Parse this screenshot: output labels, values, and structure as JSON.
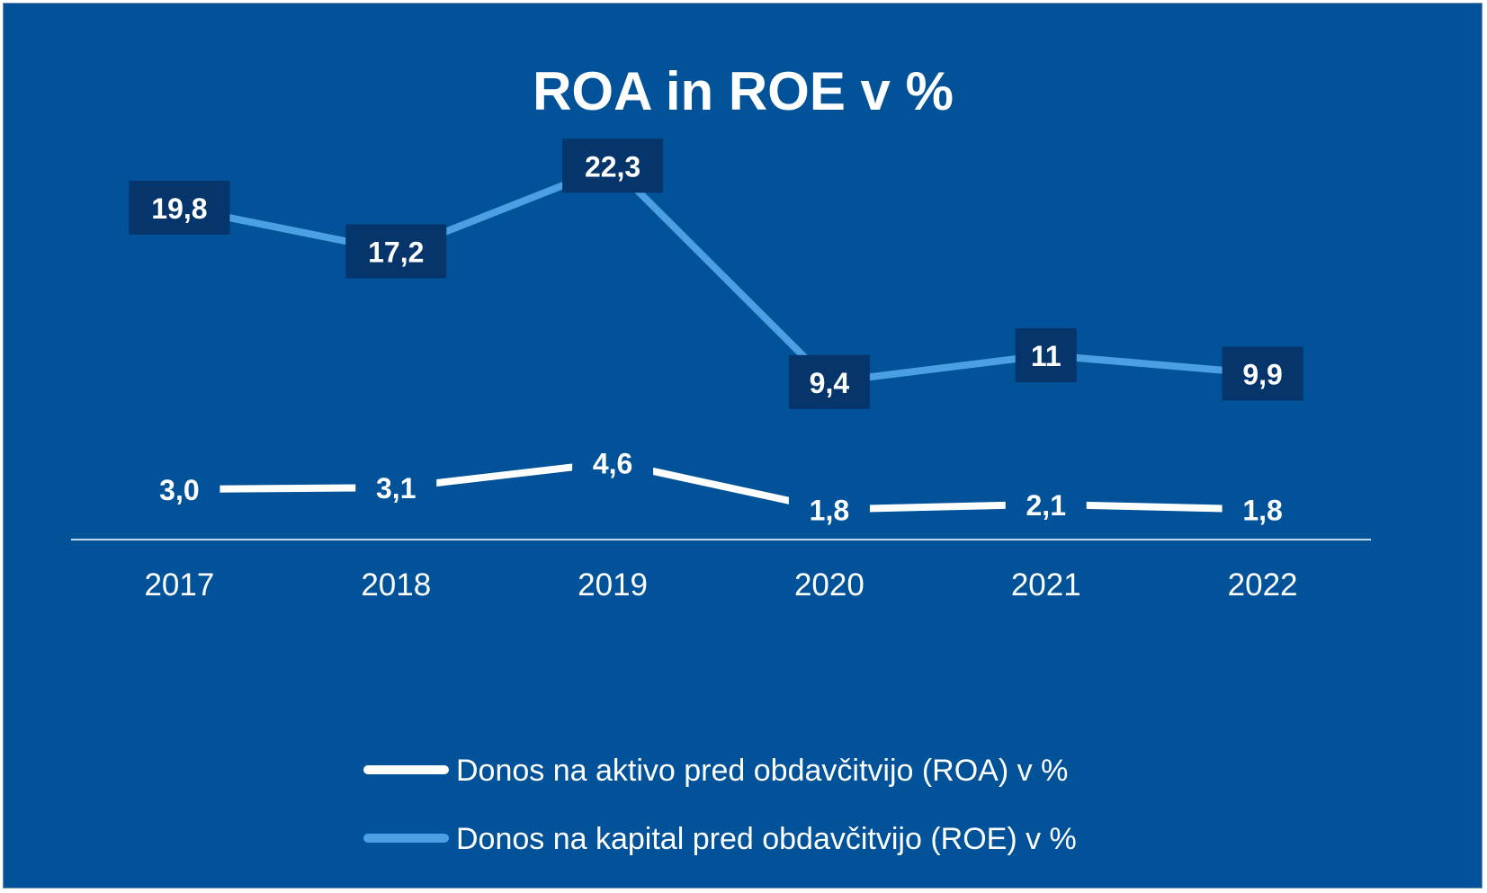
{
  "chart_data": {
    "type": "line",
    "title": "ROA in ROE v %",
    "xlabel": "",
    "ylabel": "",
    "categories": [
      "2017",
      "2018",
      "2019",
      "2020",
      "2021",
      "2022"
    ],
    "ylim": [
      0,
      25
    ],
    "grid": false,
    "legend_position": "bottom",
    "background_color": "#02529a",
    "series": [
      {
        "name": "Donos na aktivo pred obdavčitvijo (ROA) v %",
        "values": [
          3.0,
          3.1,
          4.6,
          1.8,
          2.1,
          1.8
        ],
        "labels": [
          "3,0",
          "3,1",
          "4,6",
          "1,8",
          "2,1",
          "1,8"
        ],
        "color": "#ffffff",
        "label_box": false
      },
      {
        "name": "Donos na kapital pred obdavčitvijo (ROE) v %",
        "values": [
          19.8,
          17.2,
          22.3,
          9.4,
          11.0,
          9.9
        ],
        "labels": [
          "19,8",
          "17,2",
          "22,3",
          "9,4",
          "11",
          "9,9"
        ],
        "color": "#4ba0e3",
        "label_box": true
      }
    ]
  }
}
